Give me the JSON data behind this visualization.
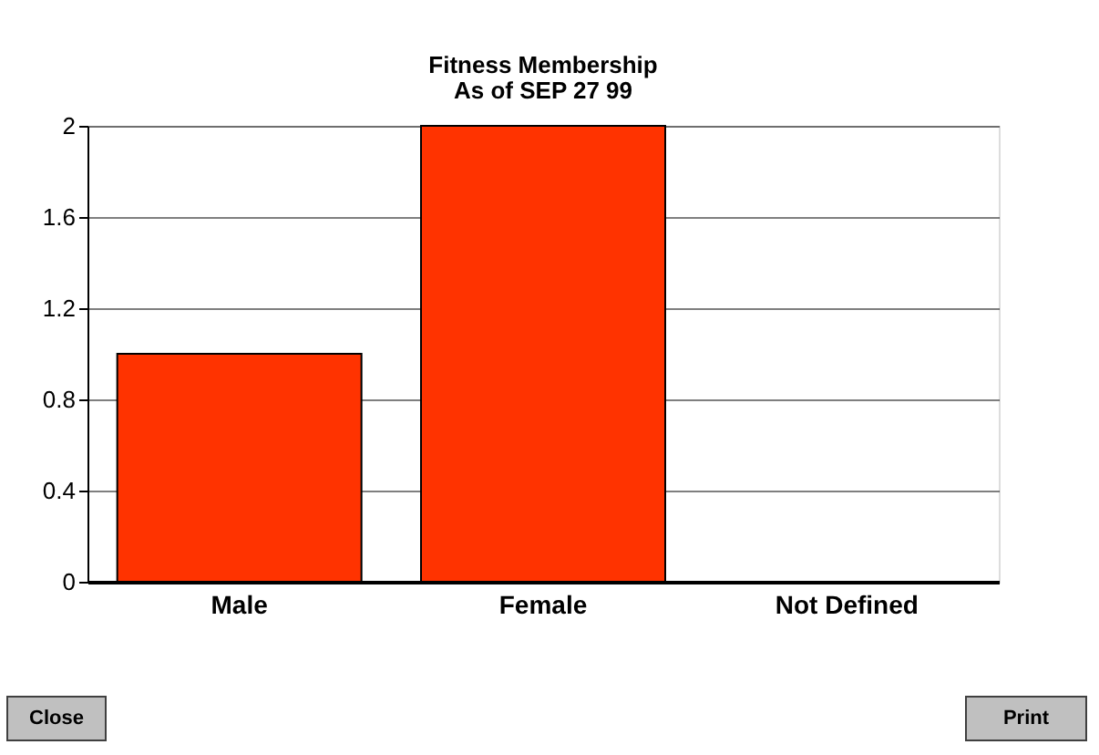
{
  "chart_data": {
    "type": "bar",
    "title": "Fitness Membership",
    "subtitle": "As of SEP 27 99",
    "categories": [
      "Male",
      "Female",
      "Not Defined"
    ],
    "values": [
      1,
      2,
      0
    ],
    "color": "#ff3300",
    "ylim": [
      0,
      2
    ],
    "yticks": [
      0,
      0.4,
      0.8,
      1.2,
      1.6,
      2
    ],
    "grid": "y",
    "annotations": [
      "Close",
      "Print"
    ]
  }
}
